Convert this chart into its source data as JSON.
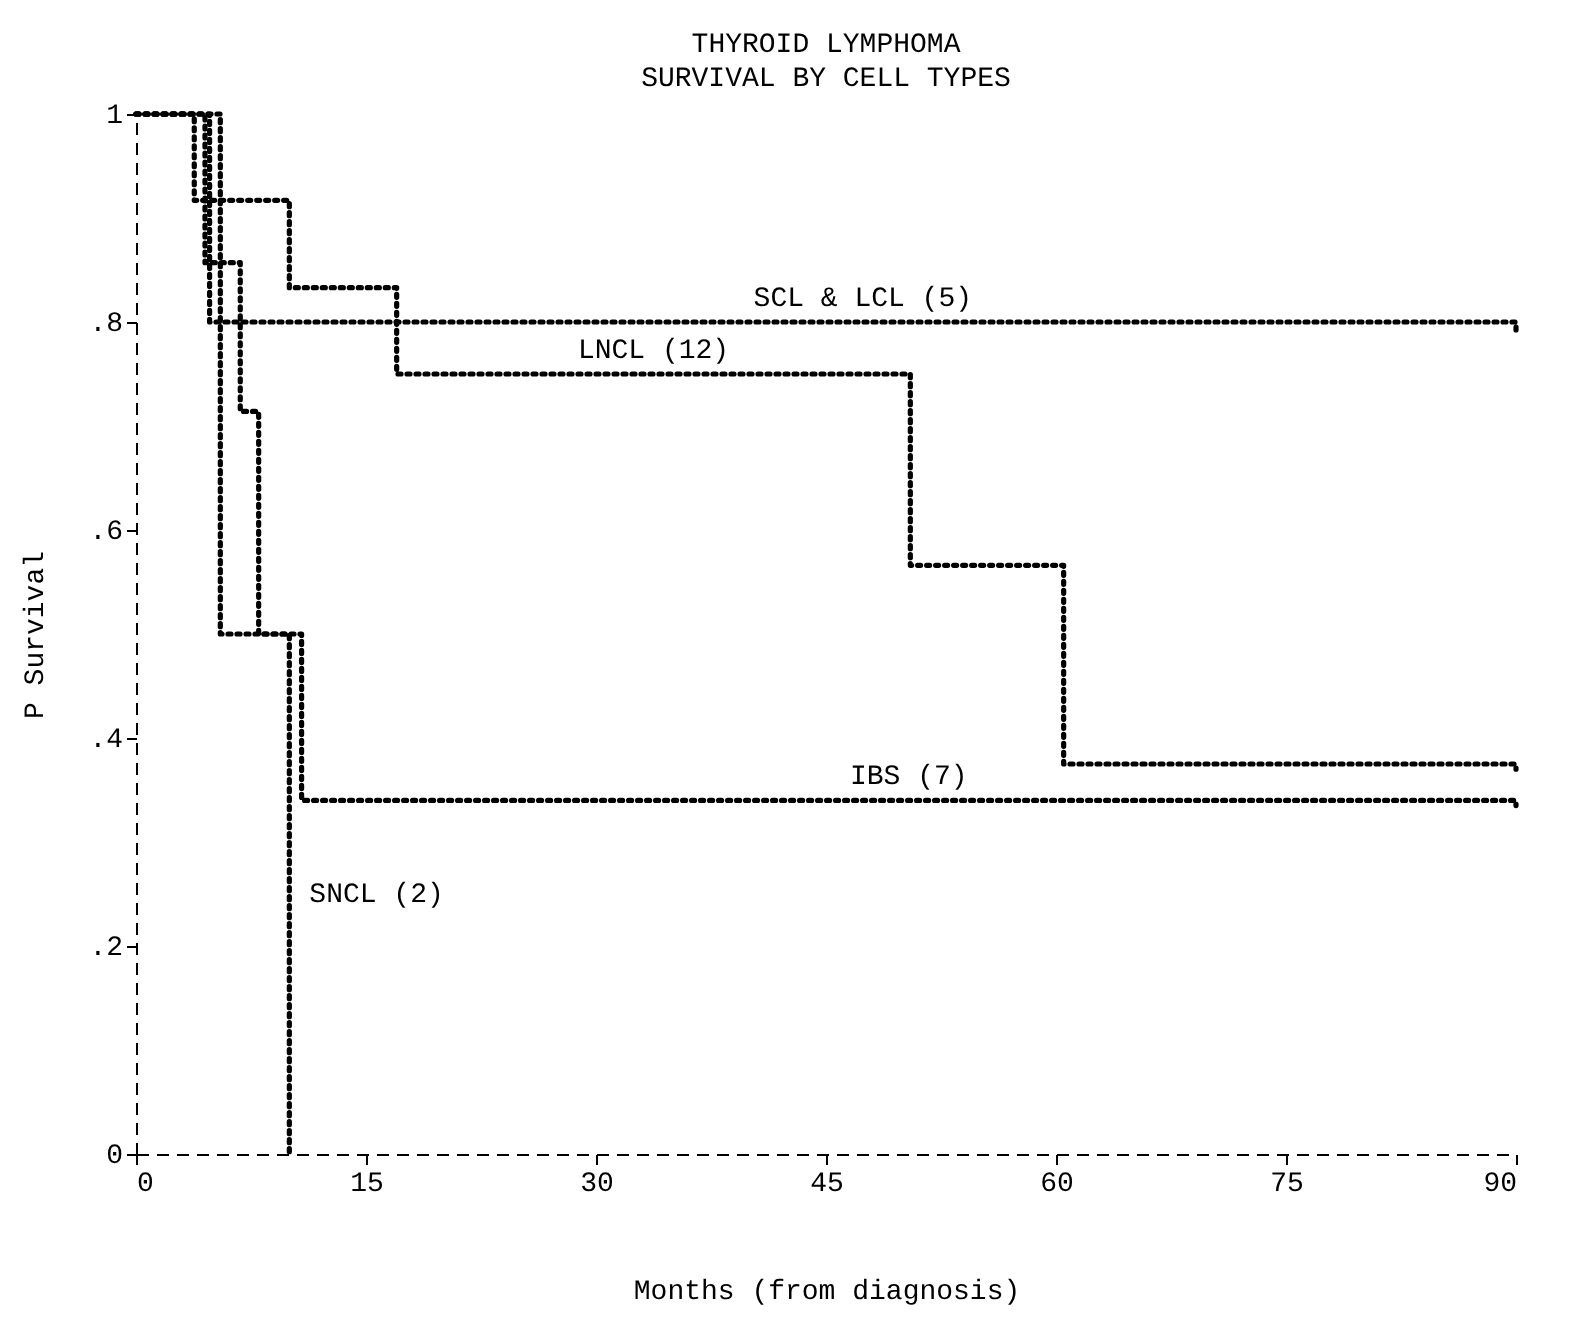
{
  "chart_data": {
    "type": "step",
    "title": "THYROID LYMPHOMA",
    "subtitle": "SURVIVAL BY CELL TYPES",
    "xlabel": "Months (from diagnosis)",
    "ylabel": "P Survival",
    "xlim": [
      0,
      90
    ],
    "xticks": [
      0,
      15,
      30,
      45,
      60,
      75,
      90
    ],
    "ylim": [
      0,
      1
    ],
    "yticks": [
      {
        "value": 0,
        "label": "0"
      },
      {
        "value": 0.2,
        "label": ".2"
      },
      {
        "value": 0.4,
        "label": ".4"
      },
      {
        "value": 0.6,
        "label": ".6"
      },
      {
        "value": 0.8,
        "label": ".8"
      },
      {
        "value": 1,
        "label": "1"
      }
    ],
    "grid": false,
    "line_style": "dotted",
    "series": [
      {
        "name": "SCL & LCL (5)",
        "color": "#000000",
        "x": [
          0,
          4.8,
          90
        ],
        "values": [
          1,
          0.8,
          0.79
        ]
      },
      {
        "name": "LNCL (12)",
        "color": "#000000",
        "x": [
          0,
          3.8,
          10,
          17,
          50.5,
          60.5,
          90
        ],
        "values": [
          1,
          0.917,
          0.833,
          0.75,
          0.566,
          0.375,
          0.37
        ]
      },
      {
        "name": "IBS (7)",
        "color": "#000000",
        "x": [
          0,
          4.5,
          6.8,
          8,
          10.8,
          90
        ],
        "values": [
          1,
          0.857,
          0.714,
          0.5,
          0.34,
          0.335
        ]
      },
      {
        "name": "SNCL (2)",
        "color": "#000000",
        "x": [
          0,
          5.5,
          10,
          10.01
        ],
        "values": [
          1,
          0.5,
          0,
          0
        ]
      }
    ]
  }
}
